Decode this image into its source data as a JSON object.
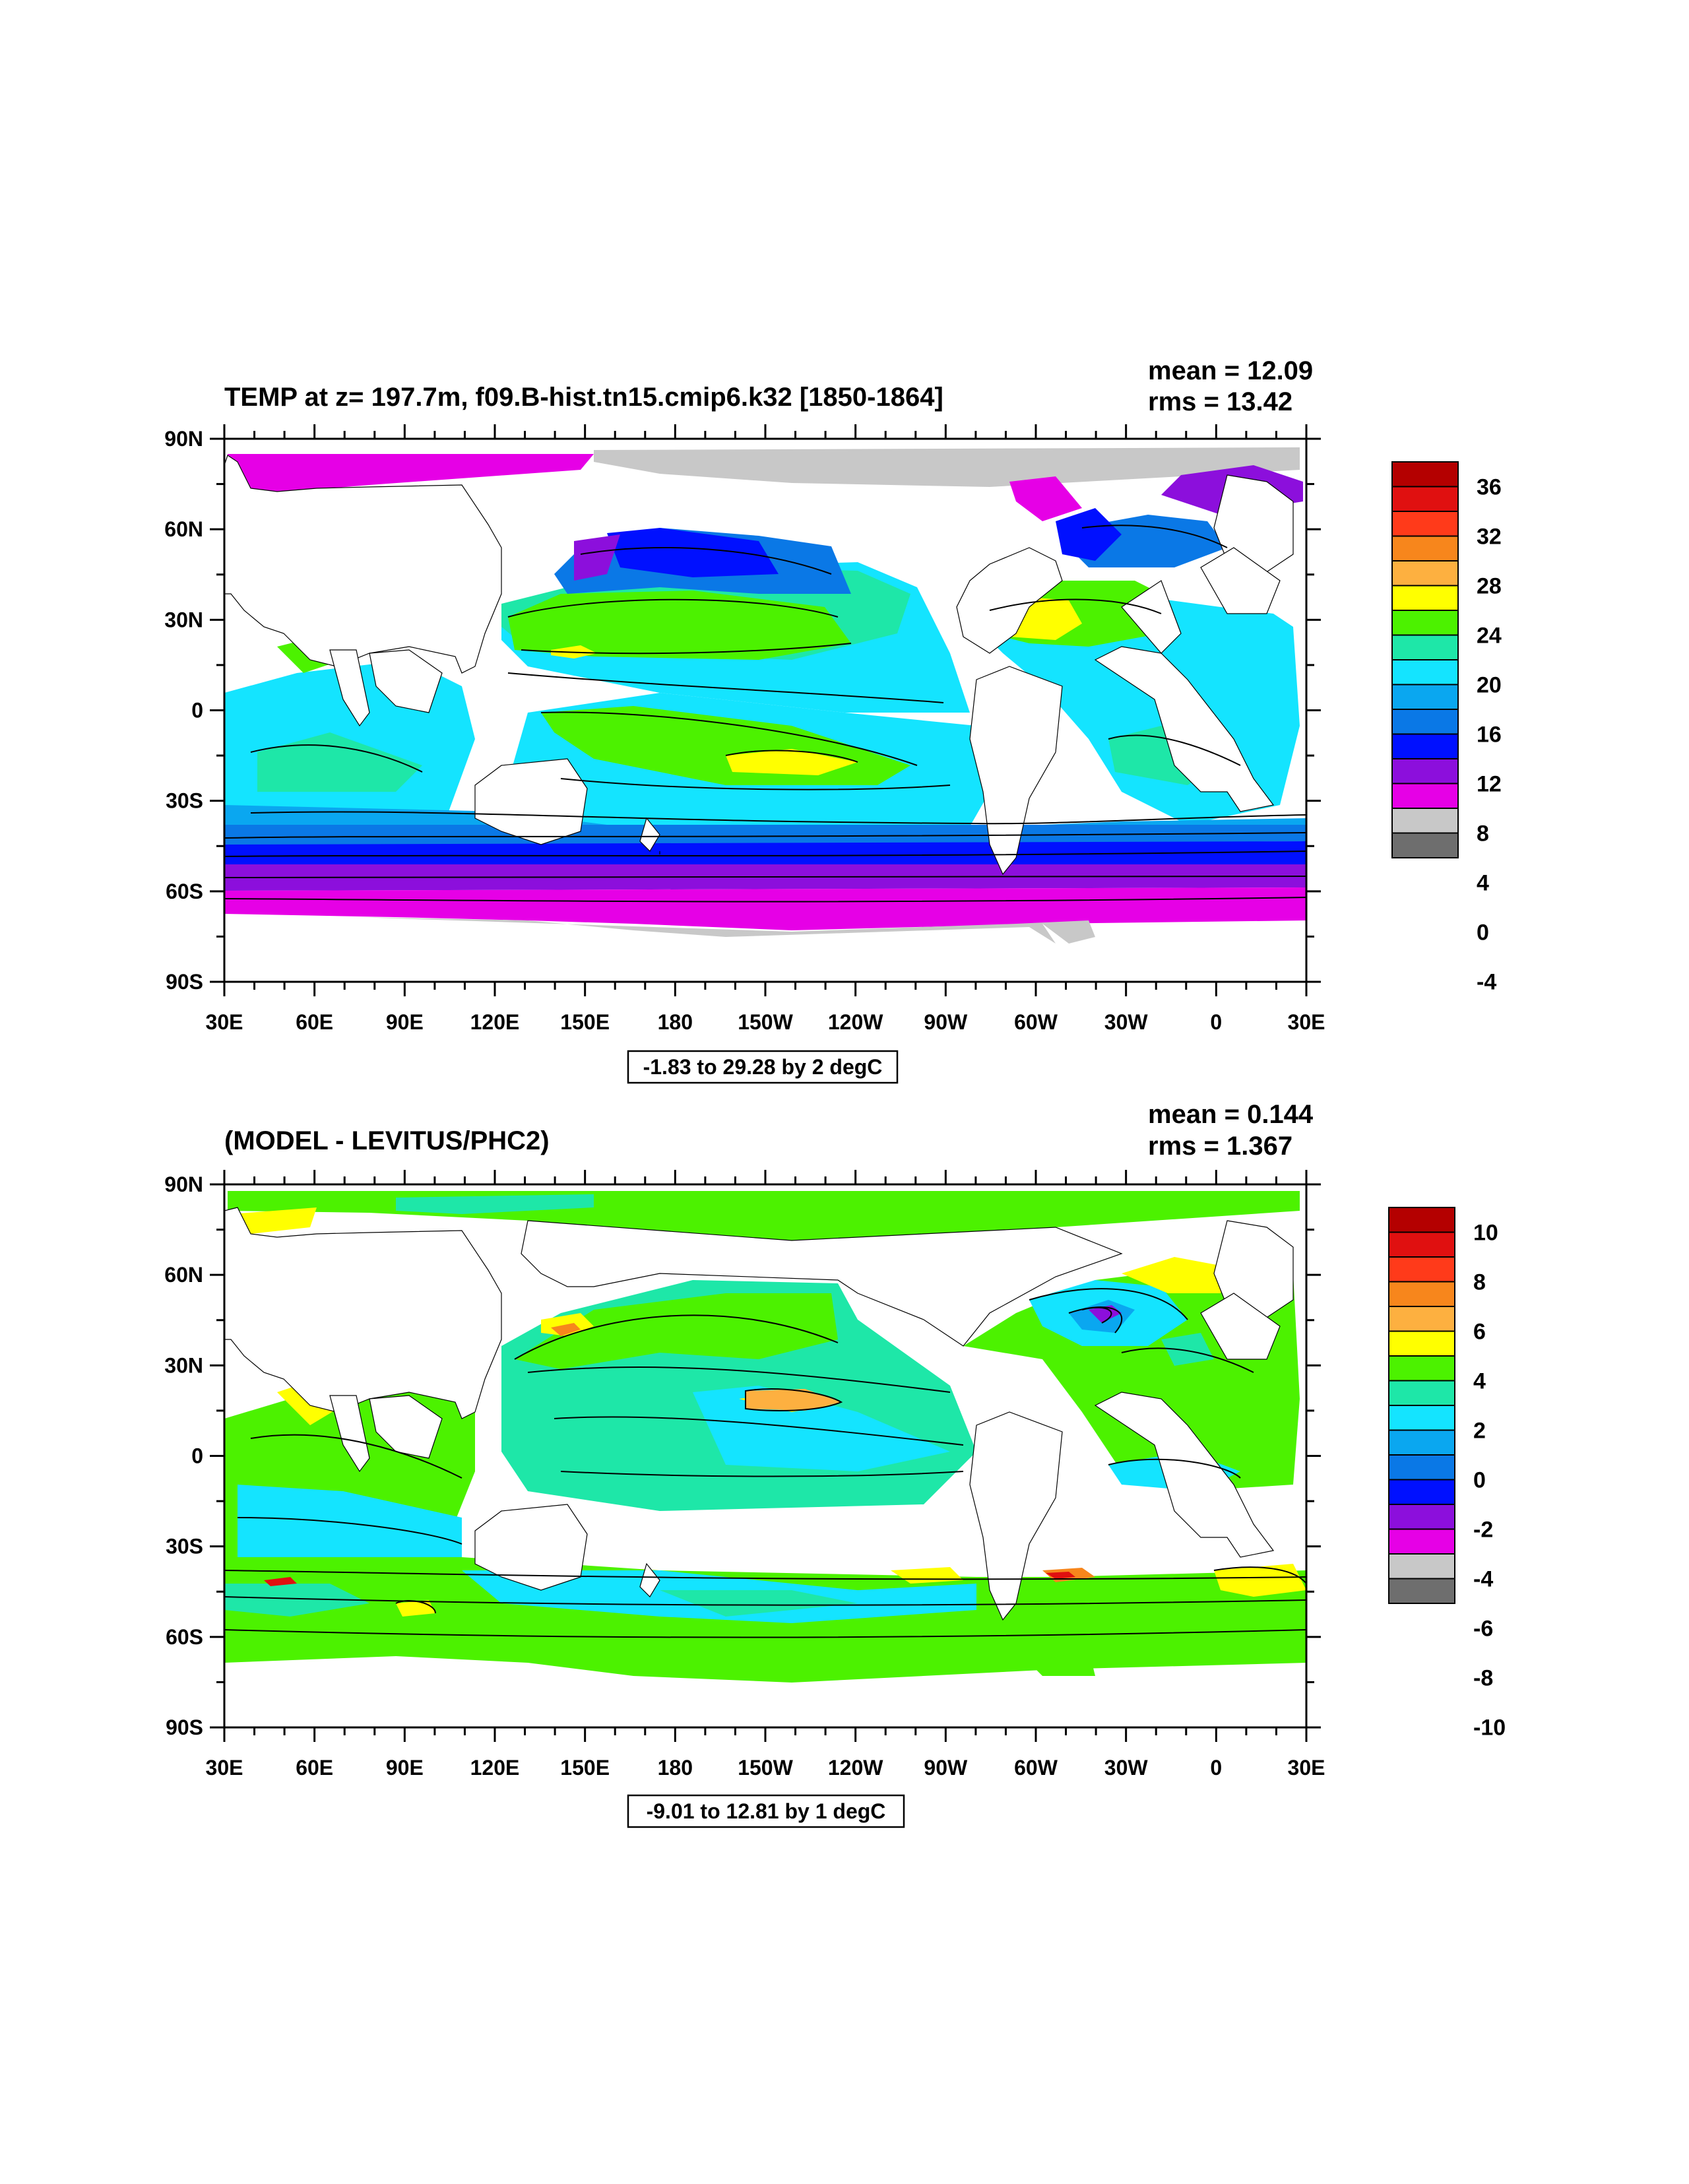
{
  "panels": [
    {
      "id": "temp",
      "title": "TEMP at z= 197.7m, f09.B-hist.tn15.cmip6.k32 [1850-1864]",
      "mean_text": "mean = 12.09",
      "rms_text": "rms = 13.42",
      "info_text": "-1.83 to 29.28 by 2 degC",
      "colorbar_labels": [
        "36",
        "32",
        "28",
        "24",
        "20",
        "16",
        "12",
        "8",
        "4",
        "0",
        "-4"
      ],
      "colorbar_colors": [
        "#b40000",
        "#e01010",
        "#ff3a1a",
        "#f7861c",
        "#fdb040",
        "#ffff00",
        "#4cf200",
        "#1ee7a8",
        "#14e4ff",
        "#0aa7f0",
        "#0a78e6",
        "#0010ff",
        "#8c0fdc",
        "#e600e6",
        "#c8c8c8",
        "#6e6e6e"
      ]
    },
    {
      "id": "diff",
      "title": "(MODEL - LEVITUS/PHC2)",
      "mean_text": "mean = 0.144",
      "rms_text": "rms = 1.367",
      "info_text": "-9.01 to 12.81 by 1 degC",
      "colorbar_labels": [
        "10",
        "8",
        "6",
        "4",
        "2",
        "0",
        "-2",
        "-4",
        "-6",
        "-8",
        "-10"
      ],
      "colorbar_colors": [
        "#b40000",
        "#e01010",
        "#ff3a1a",
        "#f7861c",
        "#fdb040",
        "#ffff00",
        "#4cf200",
        "#1ee7a8",
        "#14e4ff",
        "#0aa7f0",
        "#0a78e6",
        "#0010ff",
        "#8c0fdc",
        "#e600e6",
        "#c8c8c8",
        "#6e6e6e"
      ]
    }
  ],
  "axes": {
    "lat_labels": [
      "90N",
      "60N",
      "30N",
      "0",
      "30S",
      "60S",
      "90S"
    ],
    "lon_labels": [
      "30E",
      "60E",
      "90E",
      "120E",
      "150E",
      "180",
      "150W",
      "120W",
      "90W",
      "60W",
      "30W",
      "0",
      "30E"
    ]
  }
}
